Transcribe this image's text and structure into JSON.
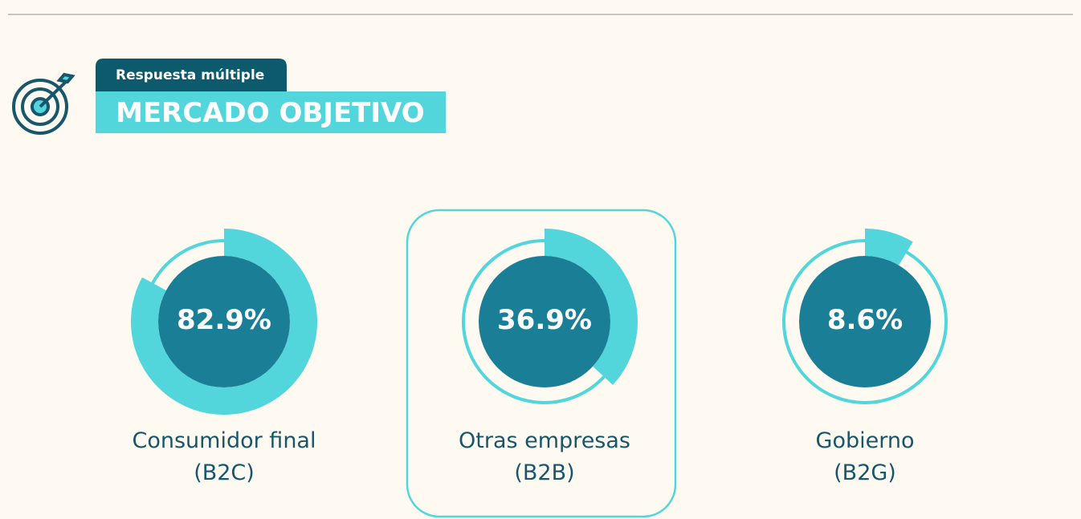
{
  "header": {
    "tag": "Respuesta múltiple",
    "title": "MERCADO OBJETIVO"
  },
  "chart_data": {
    "type": "radial",
    "categories": [
      "Consumidor final\n(B2C)",
      "Otras empresas\n(B2B)",
      "Gobierno\n(B2G)"
    ],
    "values": [
      82.9,
      36.9,
      8.6
    ],
    "value_labels": [
      "82.9%",
      "36.9%",
      "8.6%"
    ],
    "ylim": [
      0,
      100
    ],
    "color": "#52d6dc"
  }
}
